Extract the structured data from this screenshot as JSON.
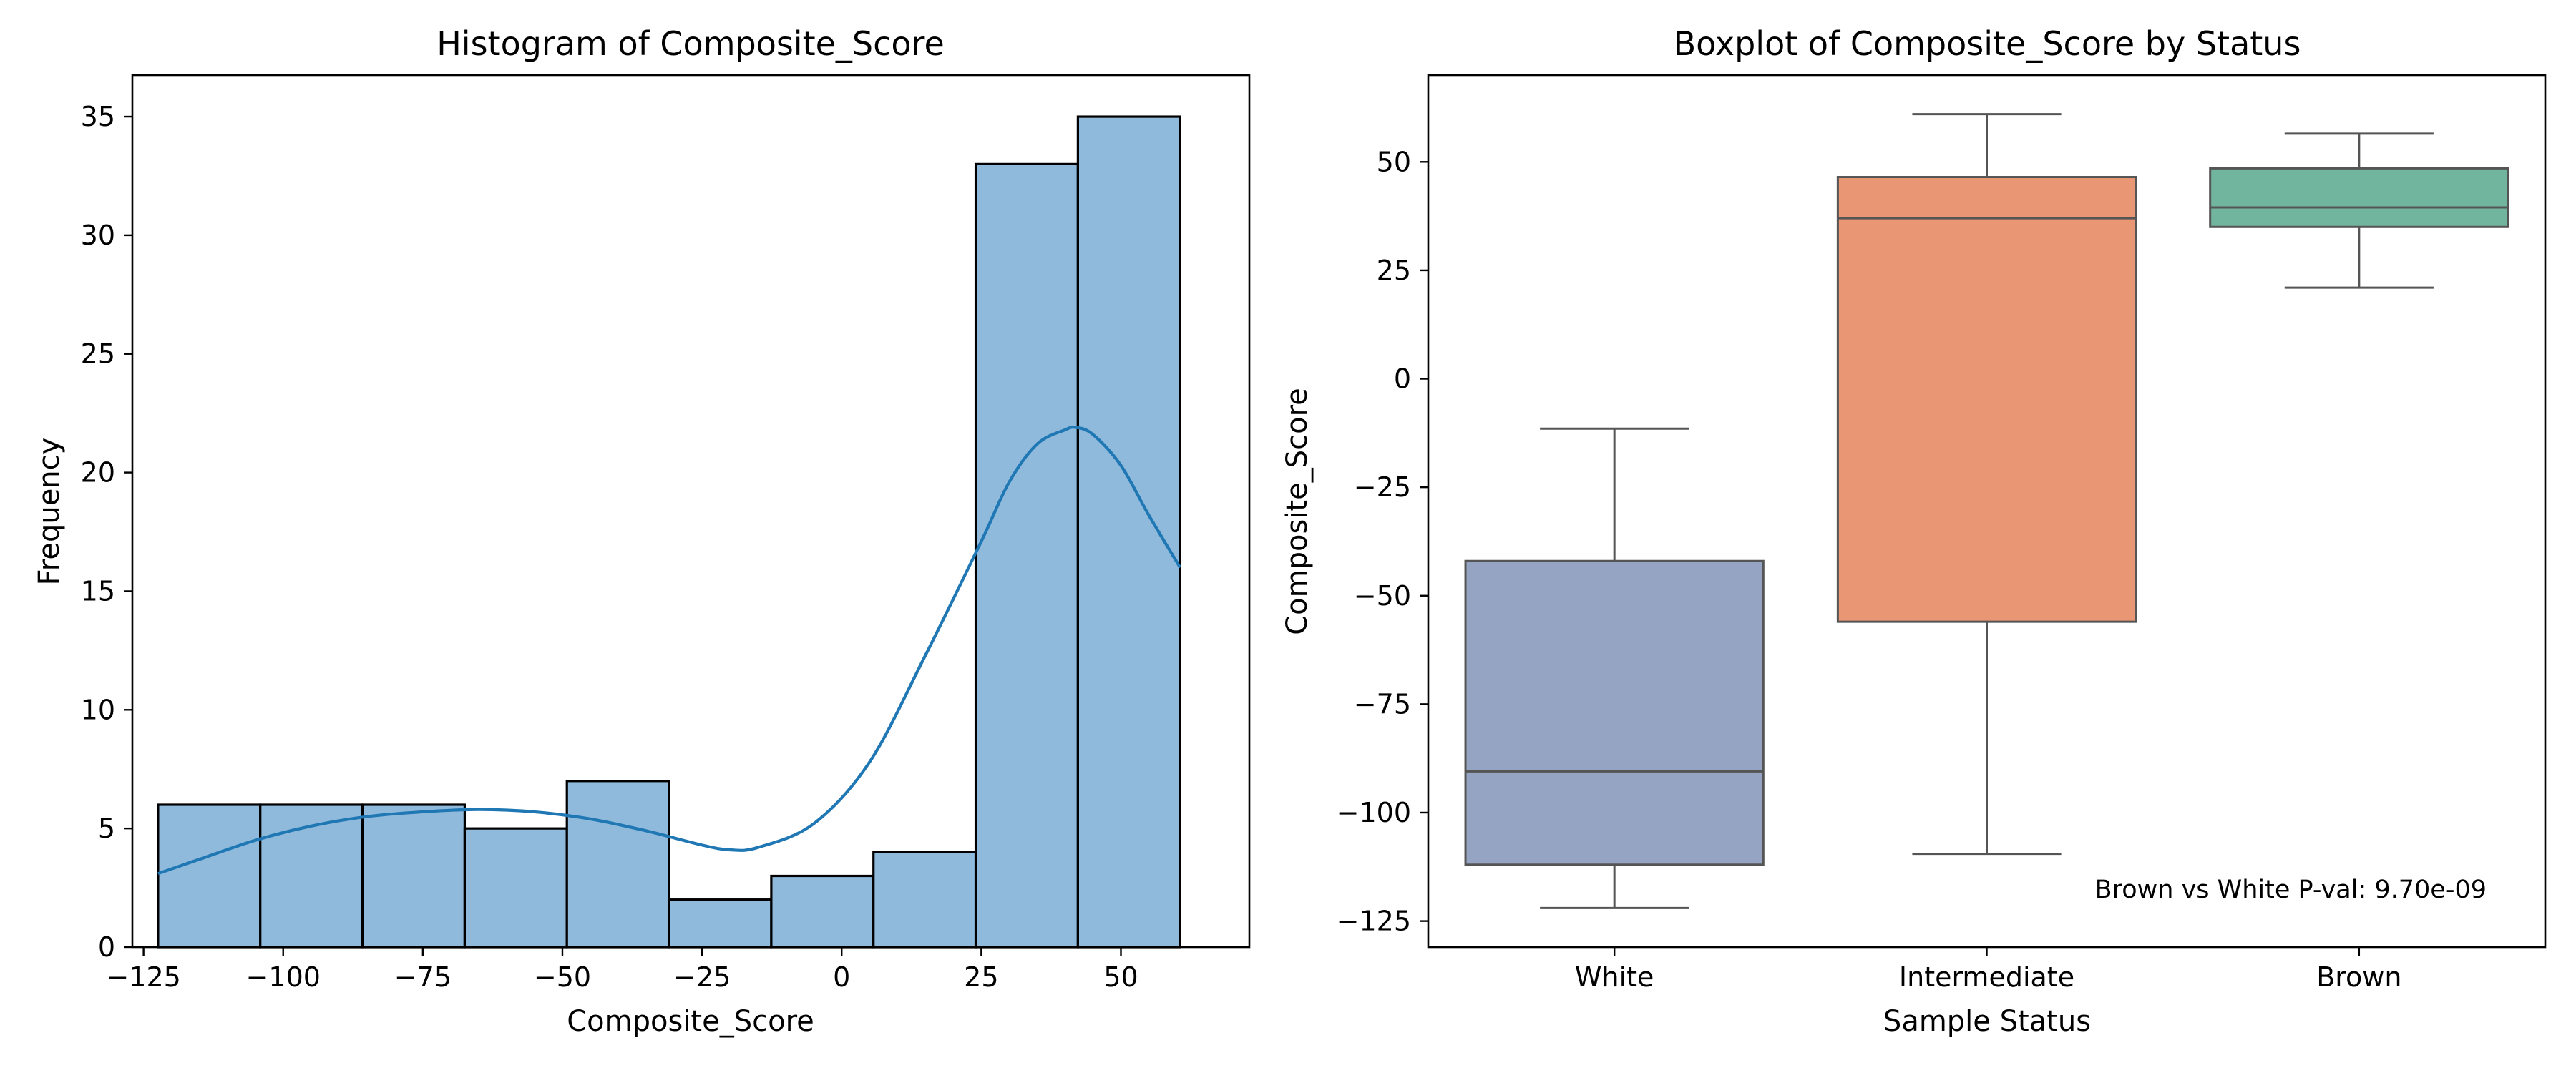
{
  "chart_data": [
    {
      "type": "bar",
      "title": "Histogram of Composite_Score",
      "xlabel": "Composite_Score",
      "ylabel": "Frequency",
      "xlim": [
        -127,
        73
      ],
      "ylim": [
        0,
        36.75
      ],
      "xticks": [
        -125,
        -100,
        -75,
        -50,
        -25,
        0,
        25,
        50
      ],
      "xtick_labels": [
        "−125",
        "−100",
        "−75",
        "−50",
        "−25",
        "0",
        "25",
        "50"
      ],
      "yticks": [
        0,
        5,
        10,
        15,
        20,
        25,
        30,
        35
      ],
      "ytick_labels": [
        "0",
        "5",
        "10",
        "15",
        "20",
        "25",
        "30",
        "35"
      ],
      "grid": false,
      "bar_color": "#8fbadb",
      "kde_color": "#1f77b4",
      "bins": [
        {
          "x0": -122.4,
          "x1": -104.1,
          "count": 6
        },
        {
          "x0": -104.1,
          "x1": -85.8,
          "count": 6
        },
        {
          "x0": -85.8,
          "x1": -67.5,
          "count": 6
        },
        {
          "x0": -67.5,
          "x1": -49.2,
          "count": 5
        },
        {
          "x0": -49.2,
          "x1": -30.9,
          "count": 7
        },
        {
          "x0": -30.9,
          "x1": -12.6,
          "count": 2
        },
        {
          "x0": -12.6,
          "x1": 5.7,
          "count": 3
        },
        {
          "x0": 5.7,
          "x1": 24.0,
          "count": 4
        },
        {
          "x0": 24.0,
          "x1": 42.3,
          "count": 33
        },
        {
          "x0": 42.3,
          "x1": 60.6,
          "count": 35
        }
      ],
      "kde": {
        "x": [
          -122.4,
          -115,
          -105,
          -95,
          -85,
          -75,
          -65,
          -55,
          -45,
          -35,
          -25,
          -20,
          -15,
          -5,
          5,
          15,
          25,
          30,
          35,
          40,
          42,
          45,
          50,
          55,
          60.6
        ],
        "y": [
          3.1,
          3.7,
          4.5,
          5.1,
          5.5,
          5.7,
          5.8,
          5.7,
          5.4,
          4.9,
          4.3,
          4.1,
          4.2,
          5.2,
          7.8,
          12.3,
          17.1,
          19.6,
          21.2,
          21.8,
          21.9,
          21.6,
          20.3,
          18.2,
          16.0
        ]
      }
    },
    {
      "type": "box",
      "title": "Boxplot of Composite_Score by Status",
      "xlabel": "Sample Status",
      "ylabel": "Composite_Score",
      "ylim": [
        -131,
        70
      ],
      "yticks": [
        -125,
        -100,
        -75,
        -50,
        -25,
        0,
        25,
        50
      ],
      "ytick_labels": [
        "−125",
        "−100",
        "−75",
        "−50",
        "−25",
        "0",
        "25",
        "50"
      ],
      "grid": false,
      "categories": [
        "White",
        "Intermediate",
        "Brown"
      ],
      "boxes": [
        {
          "name": "White",
          "whisker_low": -122,
          "q1": -112,
          "median": -90.5,
          "q3": -42,
          "whisker_high": -11.5,
          "color": "#95a4c3"
        },
        {
          "name": "Intermediate",
          "whisker_low": -109.5,
          "q1": -56,
          "median": 37,
          "q3": 46.5,
          "whisker_high": 61,
          "color": "#e89674"
        },
        {
          "name": "Brown",
          "whisker_low": 21,
          "q1": 35,
          "median": 39.5,
          "q3": 48.5,
          "whisker_high": 56.5,
          "color": "#72b59e"
        }
      ],
      "annotation": "Brown vs White P-val: 9.70e-09"
    }
  ]
}
